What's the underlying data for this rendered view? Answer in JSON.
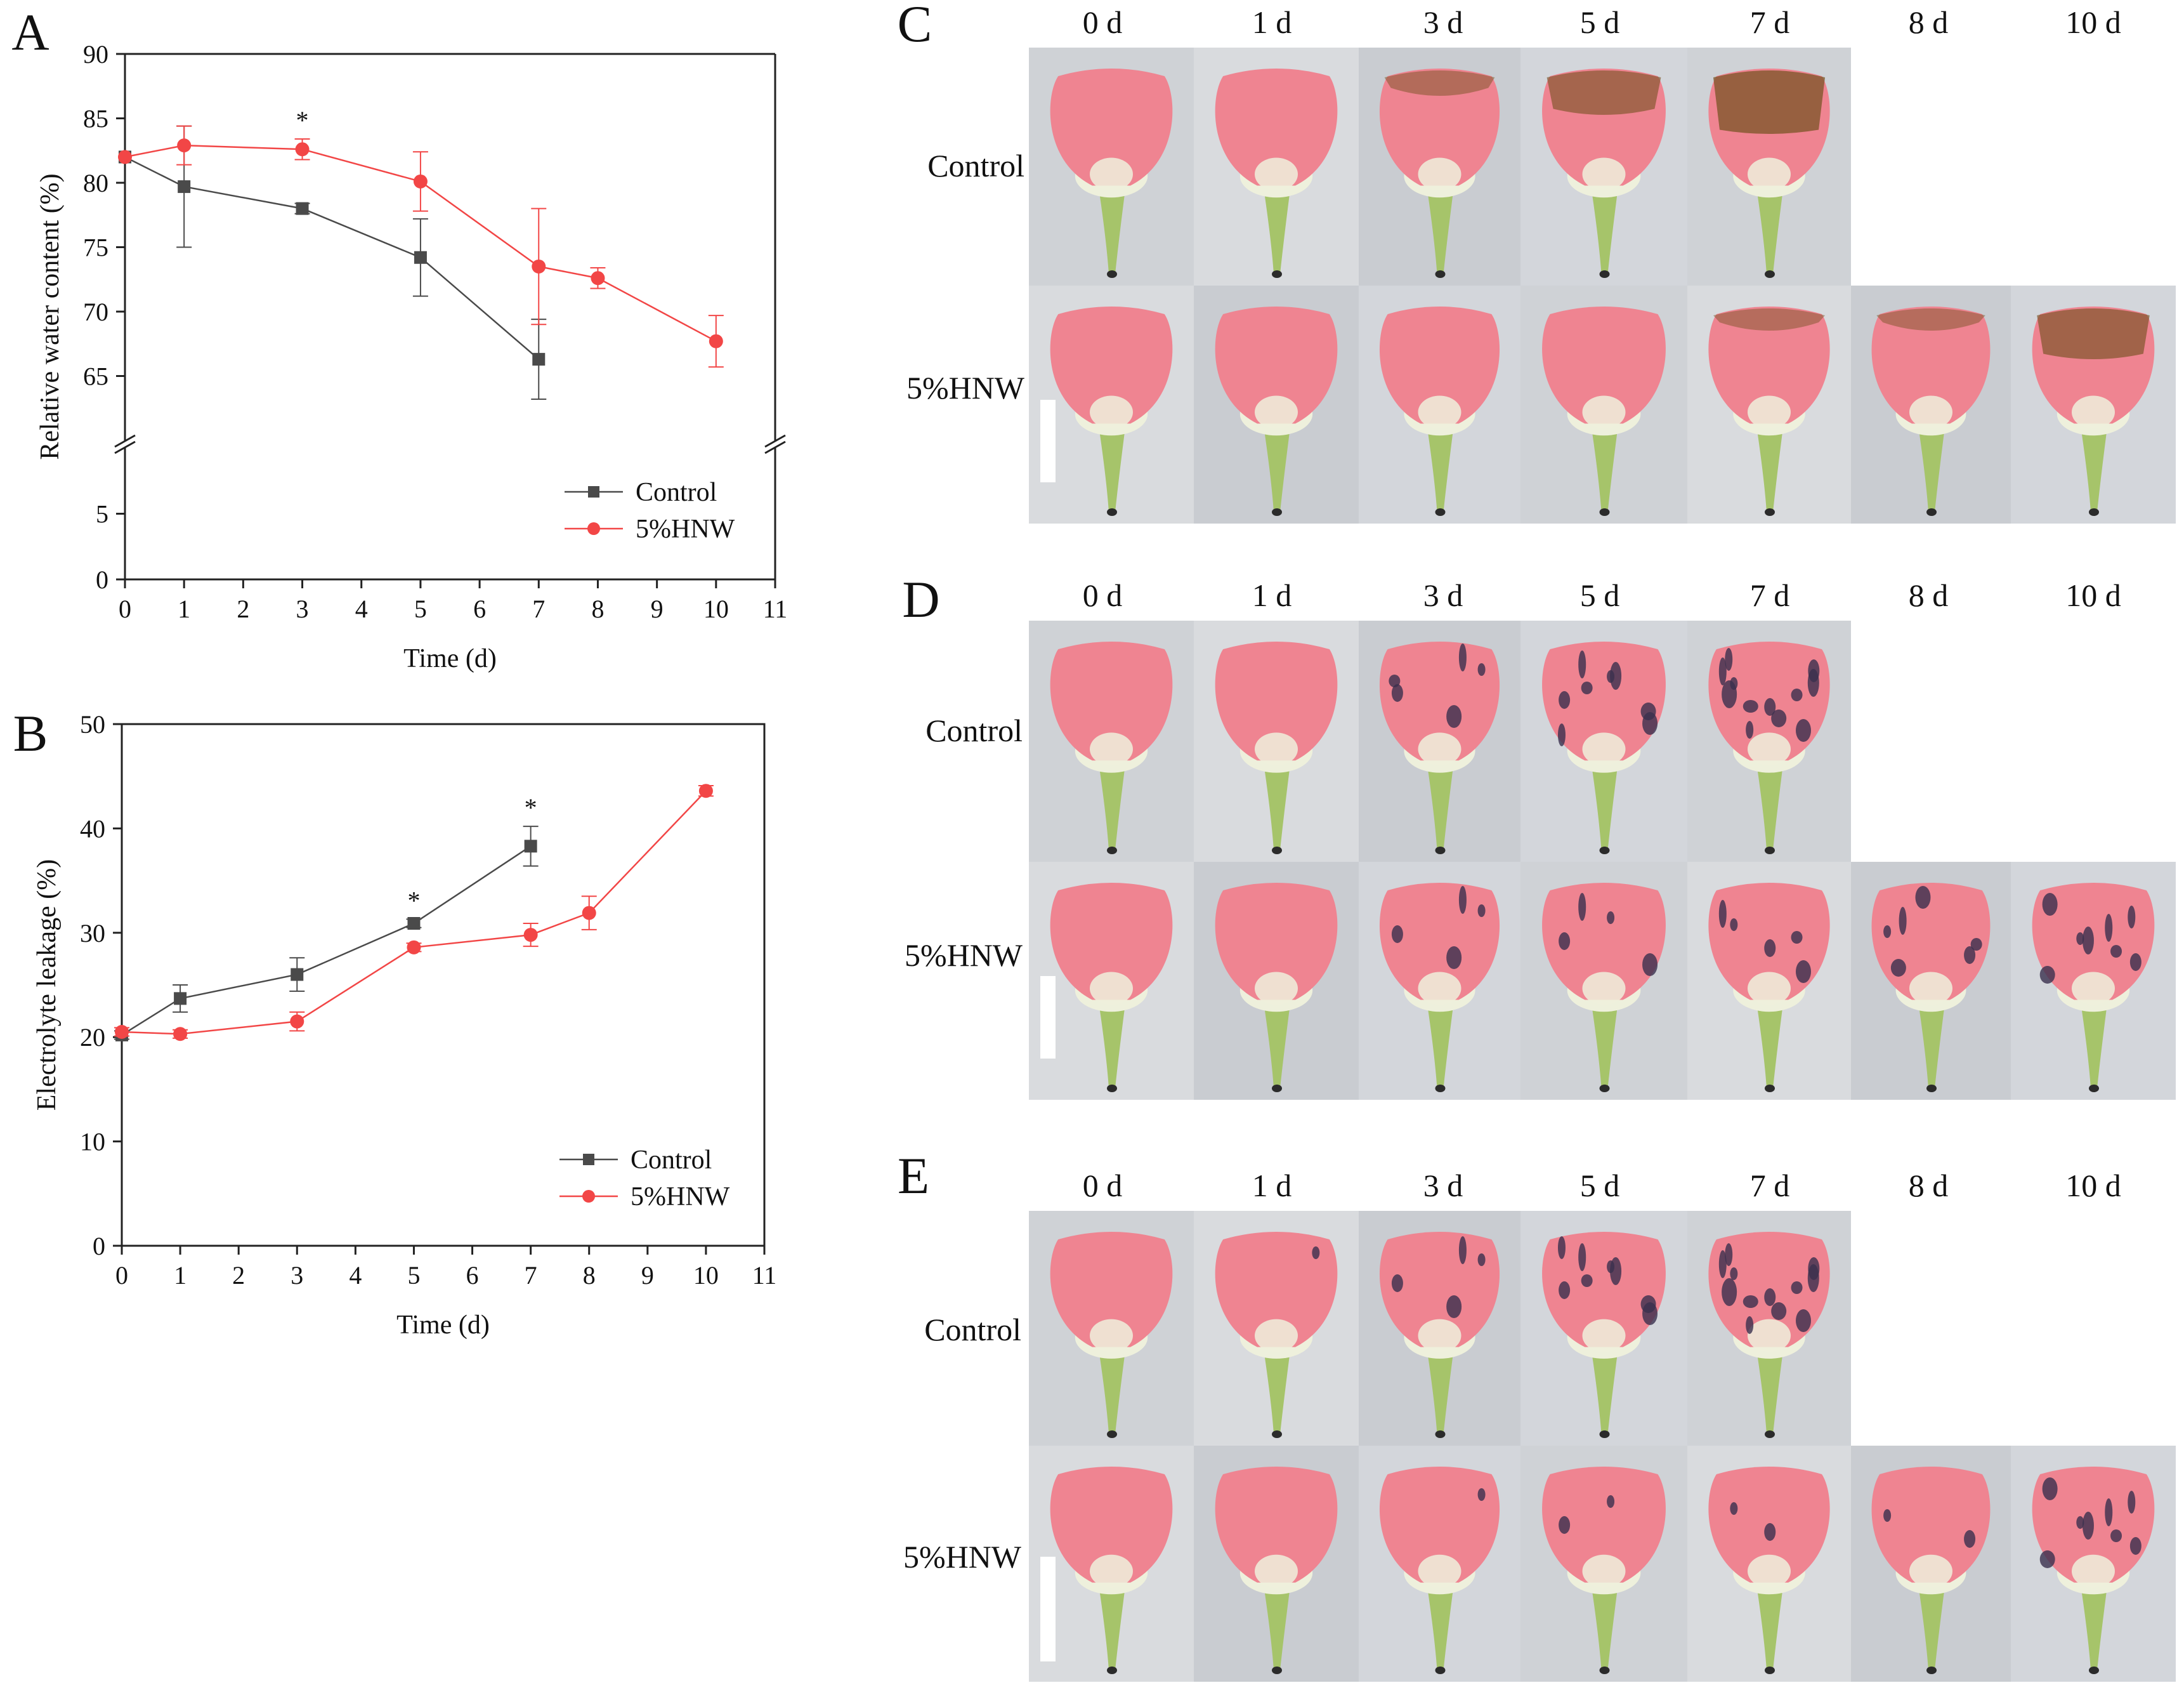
{
  "colors": {
    "control": "#4a4a4a",
    "hnw": "#f24646",
    "axis": "#222222",
    "photo_bg": "#d5d7da",
    "petal_pink": "#ef8491",
    "petal_base": "#eef0dc",
    "stalk": "#a6c46a",
    "brown": "#7a5426",
    "dark_spot": "#3a2f4d",
    "scale_bar": "#ffffff"
  },
  "chart_data": [
    {
      "panel": "A",
      "type": "line",
      "ylabel": "Relative water content (%)",
      "xlabel": "Time (d)",
      "xlim": [
        0,
        11
      ],
      "xticks": [
        0,
        1,
        2,
        3,
        4,
        5,
        6,
        7,
        8,
        9,
        10,
        11
      ],
      "axis_break": true,
      "lower_segment": {
        "ylim": [
          0,
          10
        ],
        "ticks": [
          0,
          5
        ]
      },
      "upper_segment": {
        "ylim": [
          60,
          90
        ],
        "ticks": [
          65,
          70,
          75,
          80,
          85,
          90
        ]
      },
      "series": [
        {
          "name": "Control",
          "marker": "square",
          "x": [
            0,
            1,
            3,
            5,
            7
          ],
          "y": [
            82,
            79.7,
            78,
            74.2,
            66.3
          ],
          "err": [
            0,
            4.7,
            0.4,
            3,
            3.1
          ]
        },
        {
          "name": "5%HNW",
          "marker": "circle",
          "x": [
            0,
            1,
            3,
            5,
            7,
            8,
            10
          ],
          "y": [
            82,
            82.9,
            82.6,
            80.1,
            73.5,
            72.6,
            67.7
          ],
          "err": [
            0,
            1.5,
            0.8,
            2.3,
            4.5,
            0.8,
            2
          ]
        }
      ],
      "significance": [
        {
          "x": 3,
          "y": 82.6,
          "label": "*"
        }
      ],
      "legend": "lower-right"
    },
    {
      "panel": "B",
      "type": "line",
      "ylabel": "Electrolyte leakage (%)",
      "xlabel": "Time (d)",
      "xlim": [
        0,
        11
      ],
      "xticks": [
        0,
        1,
        2,
        3,
        4,
        5,
        6,
        7,
        8,
        9,
        10,
        11
      ],
      "ylim": [
        0,
        50
      ],
      "yticks": [
        0,
        10,
        20,
        30,
        40,
        50
      ],
      "series": [
        {
          "name": "Control",
          "marker": "square",
          "x": [
            0,
            1,
            3,
            5,
            7
          ],
          "y": [
            20.2,
            23.7,
            26,
            30.9,
            38.3
          ],
          "err": [
            0.4,
            1.3,
            1.6,
            0.4,
            1.9
          ]
        },
        {
          "name": "5%HNW",
          "marker": "circle",
          "x": [
            0,
            1,
            3,
            5,
            7,
            8,
            10
          ],
          "y": [
            20.5,
            20.3,
            21.5,
            28.6,
            29.8,
            31.9,
            43.6
          ],
          "err": [
            0.4,
            0.4,
            0.9,
            0.4,
            1.1,
            1.6,
            0.5
          ]
        }
      ],
      "significance": [
        {
          "x": 5,
          "y": 30.9,
          "label": "*"
        },
        {
          "x": 7,
          "y": 38.3,
          "label": "*"
        }
      ],
      "legend": "lower-right"
    }
  ],
  "photo_panels": [
    {
      "panel": "C",
      "day_labels": [
        "0 d",
        "1 d",
        "3 d",
        "5 d",
        "7 d",
        "8 d",
        "10 d"
      ],
      "rows": [
        {
          "label": "Control",
          "count": 5,
          "browning": [
            0,
            0,
            0.15,
            0.45,
            0.75
          ],
          "spots": [
            0,
            0,
            0,
            0,
            0
          ]
        },
        {
          "label": "5%HNW",
          "count": 7,
          "browning": [
            0,
            0,
            0,
            0,
            0.1,
            0.1,
            0.55
          ],
          "spots": [
            0,
            0,
            0,
            0,
            0,
            0,
            0
          ]
        }
      ]
    },
    {
      "panel": "D",
      "day_labels": [
        "0 d",
        "1 d",
        "3 d",
        "5 d",
        "7 d",
        "8 d",
        "10 d"
      ],
      "rows": [
        {
          "label": "Control",
          "count": 5,
          "browning": [
            0,
            0,
            0,
            0,
            0
          ],
          "spots": [
            0,
            0,
            0.35,
            0.6,
            0.85
          ]
        },
        {
          "label": "5%HNW",
          "count": 7,
          "browning": [
            0,
            0,
            0,
            0,
            0,
            0,
            0
          ],
          "spots": [
            0,
            0,
            0.3,
            0.3,
            0.35,
            0.4,
            0.55
          ]
        }
      ]
    },
    {
      "panel": "E",
      "day_labels": [
        "0 d",
        "1 d",
        "3 d",
        "5 d",
        "7 d",
        "8 d",
        "10 d"
      ],
      "rows": [
        {
          "label": "Control",
          "count": 5,
          "browning": [
            0,
            0,
            0,
            0,
            0
          ],
          "spots": [
            0,
            0.1,
            0.25,
            0.55,
            0.85
          ]
        },
        {
          "label": "5%HNW",
          "count": 7,
          "browning": [
            0,
            0,
            0,
            0,
            0,
            0,
            0
          ],
          "spots": [
            0,
            0,
            0.1,
            0.12,
            0.15,
            0.15,
            0.55
          ]
        }
      ]
    }
  ]
}
